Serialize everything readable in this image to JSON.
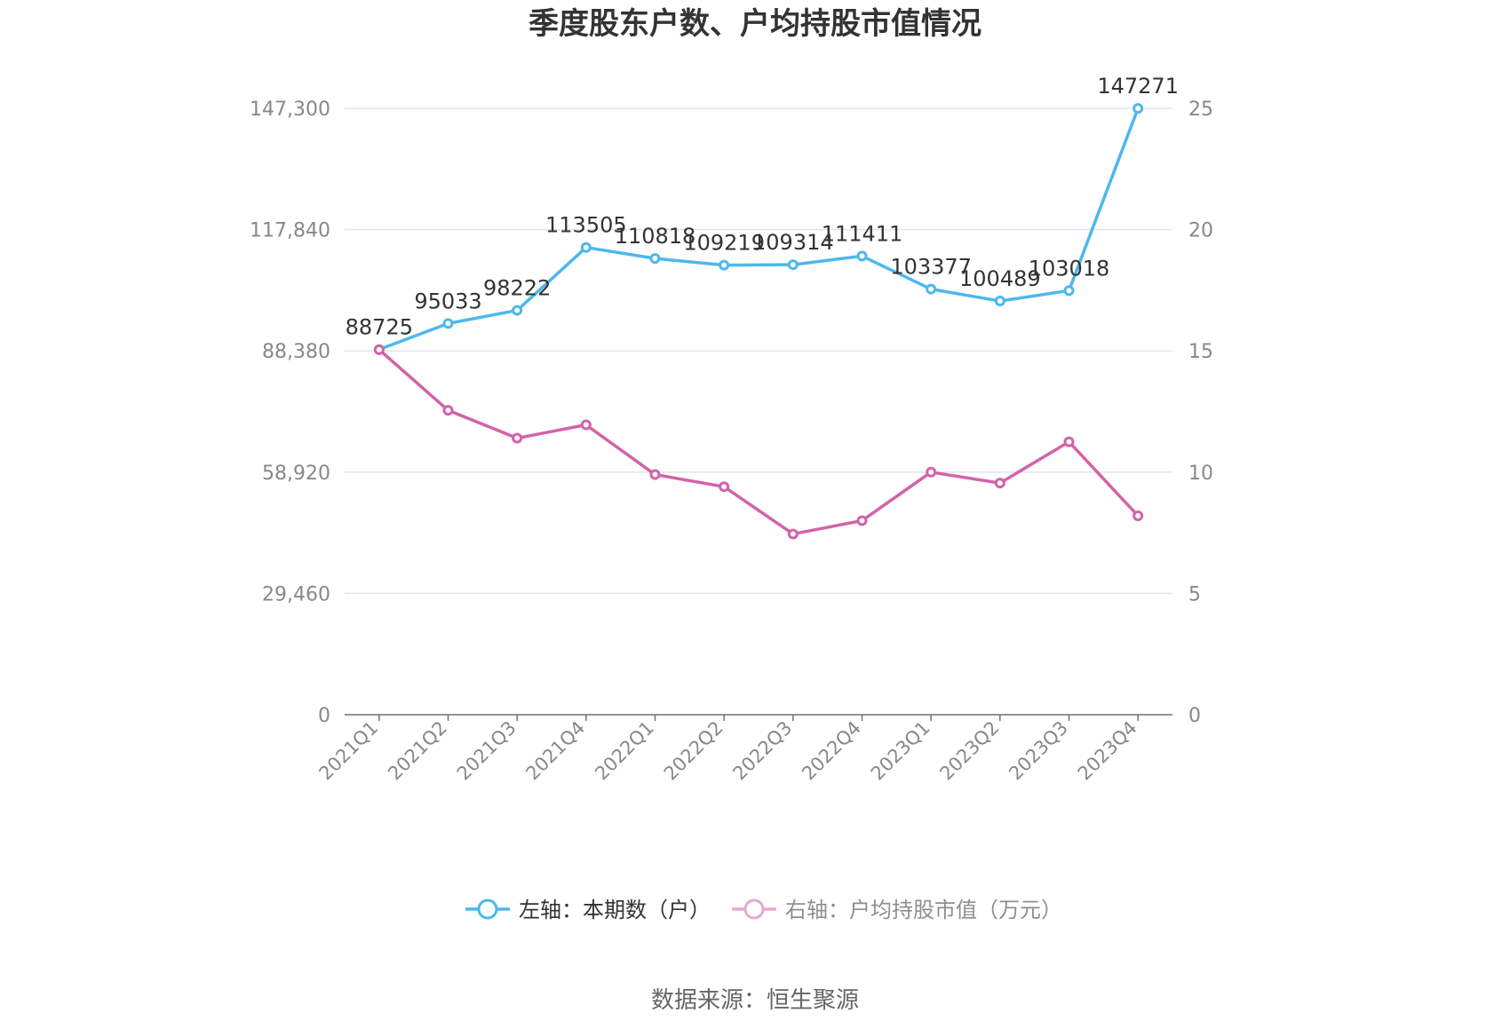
{
  "chart_data": {
    "type": "line",
    "title": "季度股东户数、户均持股市值情况",
    "categories": [
      "2021Q1",
      "2021Q2",
      "2021Q3",
      "2021Q4",
      "2022Q1",
      "2022Q2",
      "2022Q3",
      "2022Q4",
      "2023Q1",
      "2023Q2",
      "2023Q3",
      "2023Q4"
    ],
    "y_left": {
      "ticks": [
        "0",
        "29,460",
        "58,920",
        "88,380",
        "117,840",
        "147,300"
      ],
      "range": [
        0,
        147300
      ]
    },
    "y_right": {
      "ticks": [
        "0",
        "5",
        "10",
        "15",
        "20",
        "25"
      ],
      "range": [
        0,
        25
      ]
    },
    "grid": true,
    "legend_position": "bottom",
    "series": [
      {
        "name": "左轴：本期数（户）",
        "axis": "left",
        "color": "#4db8ec",
        "values": [
          88725,
          95033,
          98222,
          113505,
          110818,
          109219,
          109314,
          111411,
          103377,
          100489,
          103018,
          147271
        ],
        "labels": [
          "88725",
          "95033",
          "98222",
          "113505",
          "110818",
          "109219",
          "109314",
          "111411",
          "103377",
          "100489",
          "103018",
          "147271"
        ]
      },
      {
        "name": "右轴：户均持股市值（万元）",
        "axis": "right",
        "color": "#d462a8",
        "values": [
          15.05,
          12.55,
          11.4,
          11.95,
          9.9,
          9.4,
          7.45,
          8.0,
          10.0,
          9.55,
          11.25,
          8.2
        ]
      }
    ]
  },
  "source": "数据来源：恒生聚源"
}
